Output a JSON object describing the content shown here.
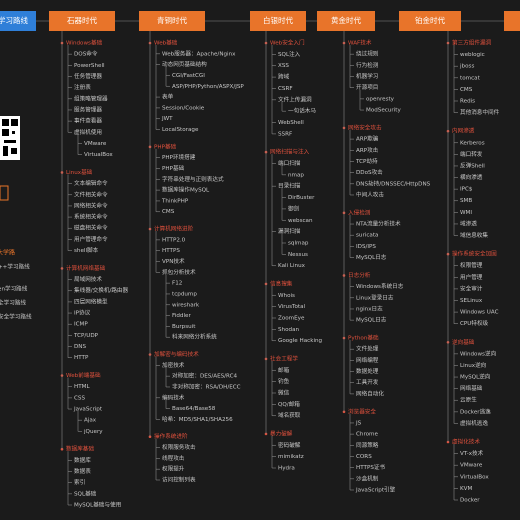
{
  "tab": "学习路线",
  "sidebar": [
    "大学路",
    "++学习路线",
    "en学习路线",
    "全学习路线",
    "安全学习路线"
  ],
  "columns": [
    {
      "title": "石器时代",
      "sections": [
        {
          "title": "Windows基础",
          "items": [
            "DOS命令",
            "PowerShell",
            "任务管理器",
            "注册表",
            "组策略管理器",
            "服务管理器",
            "事件查看器",
            {
              "label": "虚拟机使用",
              "children": [
                "VMware",
                "VirtualBox"
              ]
            }
          ]
        },
        {
          "title": "Linux基础",
          "items": [
            "文本编辑命令",
            "文件相关命令",
            "网络相关命令",
            "系统相关命令",
            "磁盘相关命令",
            "用户管理命令",
            "shell脚本"
          ]
        },
        {
          "title": "计算机网络基础",
          "items": [
            "局域网技术",
            "集线器/交换机/路由器",
            "四层网络模型",
            "IP协议",
            "ICMP",
            "TCP/UDP",
            "DNS",
            "HTTP"
          ]
        },
        {
          "title": "Web前端基础",
          "items": [
            "HTML",
            "CSS",
            {
              "label": "JavaScript",
              "children": [
                "Ajax",
                "jQuery"
              ]
            }
          ]
        },
        {
          "title": "数据库基础",
          "items": [
            "数据库",
            "数据表",
            "索引",
            "SQL基础",
            "MySQL基础与使用"
          ]
        }
      ]
    },
    {
      "title": "青铜时代",
      "sections": [
        {
          "title": "Web基础",
          "items": [
            "Web服务器：Apache/Nginx",
            {
              "label": "动态网页基础结构",
              "children": [
                "CGI/FastCGI",
                "ASP/PHP/Python/ASPX/JSP"
              ]
            },
            "表单",
            "Session/Cookie",
            "JWT",
            "LocalStorage"
          ]
        },
        {
          "title": "PHP基础",
          "items": [
            "PHP环境搭建",
            "PHP基础",
            "字符串处理与正则表达式",
            "数据库操作MySQL",
            "ThinkPHP",
            "CMS"
          ]
        },
        {
          "title": "计算机网络进阶",
          "items": [
            "HTTP2.0",
            "HTTPS",
            "VPN技术",
            {
              "label": "抓包分析技术",
              "children": [
                "F12",
                "tcpdump",
                "wireshark",
                "Fiddler",
                "Burpsuit",
                "科来网络分析系统"
              ]
            }
          ]
        },
        {
          "title": "加解密与编码技术",
          "items": [
            {
              "label": "加密技术",
              "children": [
                "对称加密：DES/AES/RC4",
                "非对称加密：RSA/DH/ECC"
              ]
            },
            {
              "label": "编码技术",
              "children": [
                "Base64/Base58"
              ]
            },
            "哈希：MD5/SHA1/SHA256"
          ]
        },
        {
          "title": "操作系统进阶",
          "items": [
            "权限服务攻击",
            "线程攻击",
            "权限提升",
            "访问控制列表"
          ]
        }
      ]
    },
    {
      "title": "白银时代",
      "sections": [
        {
          "title": "Web安全入门",
          "items": [
            "SQL注入",
            "XSS",
            "跨域",
            "CSRF",
            {
              "label": "文件上传漏洞",
              "children": [
                "一句话木马"
              ]
            },
            "WebShell",
            "SSRF"
          ]
        },
        {
          "title": "网络扫描与注入",
          "items": [
            {
              "label": "端口扫描",
              "children": [
                "nmap"
              ]
            },
            {
              "label": "目录扫描",
              "children": [
                "DirBuster",
                "御剑",
                "webscan"
              ]
            },
            {
              "label": "漏洞扫描",
              "children": [
                "sqlmap",
                "Nessus"
              ]
            },
            "Kali Linux"
          ]
        },
        {
          "title": "信息搜集",
          "items": [
            "Whois",
            "VirusTotal",
            "ZoomEye",
            "Shodan",
            "Google Hacking"
          ]
        },
        {
          "title": "社会工程学",
          "items": [
            "邮箱",
            "钓鱼",
            "微信",
            "QQ/邮箱",
            "域名获取"
          ]
        },
        {
          "title": "暴力破解",
          "items": [
            "密码破解",
            "mimikatz",
            "Hydra"
          ]
        }
      ]
    },
    {
      "title": "黄金时代",
      "sections": [
        {
          "title": "WAF技术",
          "items": [
            "绕过规则",
            "行为检测",
            "机器学习",
            {
              "label": "开源项目",
              "children": [
                "openresty",
                "ModSecurity"
              ]
            }
          ]
        },
        {
          "title": "网络安全攻击",
          "items": [
            "ARP欺骗",
            "ARP攻击",
            "TCP劫持",
            "DDoS攻击",
            "DNS劫持/DNSSEC/HttpDNS",
            "中间人攻击"
          ]
        },
        {
          "title": "入侵检测",
          "items": [
            "NTA流量分析技术",
            "suricata",
            "IDS/IPS",
            "MySQL日志"
          ]
        },
        {
          "title": "日志分析",
          "items": [
            "Windows系统日志",
            "Linux登录日志",
            "nginx日志",
            "MySQL日志"
          ]
        },
        {
          "title": "Python基础",
          "items": [
            "文件处理",
            "网络编程",
            "数据处理",
            "工具开发",
            "网络自动化"
          ]
        },
        {
          "title": "浏览器安全",
          "items": [
            "JS",
            "Chrome",
            "同源策略",
            "CORS",
            "HTTPS证书",
            "沙盒机制",
            "JavaScript引擎"
          ]
        }
      ]
    },
    {
      "title": "铂金时代",
      "sections": [
        {
          "title": "第三方组件漏洞",
          "items": [
            "weblogic",
            "jboss",
            "tomcat",
            "CMS",
            "Redis",
            "其他消息中间件"
          ]
        },
        {
          "title": "内网渗透",
          "items": [
            "Kerberos",
            "端口转发",
            "反弹Shell",
            "横向渗透",
            "IPC$",
            "SMB",
            "WMI",
            "域渗透",
            "域信息收集"
          ]
        },
        {
          "title": "操作系统安全加固",
          "items": [
            "权限管理",
            "用户管理",
            "安全审计",
            "SELinux",
            "Windows UAC",
            "CPU特权级"
          ]
        },
        {
          "title": "逆向基础",
          "items": [
            "Windows逆向",
            "Linux逆向",
            "MySQL逆向",
            "网络基础",
            "云原生",
            "Docker逃逸",
            "虚拟机逃逸"
          ]
        },
        {
          "title": "虚拟化技术",
          "items": [
            "VT-x技术",
            "VMware",
            "VirtualBox",
            "KVM",
            "Docker"
          ]
        }
      ]
    }
  ]
}
